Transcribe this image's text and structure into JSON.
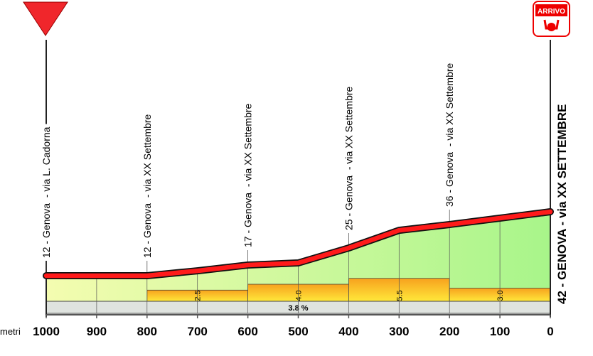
{
  "chart_data": {
    "type": "area",
    "title": "",
    "xlabel": "metri",
    "ylabel": "",
    "x_direction": "decreasing",
    "xlim": [
      1000,
      0
    ],
    "ylim": [
      0,
      42
    ],
    "x_ticks": [
      "1000",
      "900",
      "800",
      "700",
      "600",
      "500",
      "400",
      "300",
      "200",
      "100",
      "0"
    ],
    "profile": {
      "x": [
        1000,
        800,
        700,
        600,
        500,
        400,
        300,
        200,
        100,
        0
      ],
      "elevation": [
        12,
        12,
        14.3,
        17,
        18,
        25,
        33.3,
        36,
        39,
        42
      ]
    },
    "waypoints": [
      {
        "x": 1000,
        "label": "12 - Genova  - via L. Cadorna"
      },
      {
        "x": 800,
        "label": "12 - Genova  - via XX Settembre"
      },
      {
        "x": 600,
        "label": "17 - Genova  - via XX Settembre"
      },
      {
        "x": 400,
        "label": "25 - Genova  - via XX Settembre"
      },
      {
        "x": 200,
        "label": "36 - Genova  - via XX Settembre"
      },
      {
        "x": 0,
        "label": "42 - GENOVA - via XX SETTEMBRE",
        "finish": true
      }
    ],
    "gradients": [
      {
        "from": 800,
        "to": 600,
        "value": "2.5"
      },
      {
        "from": 600,
        "to": 400,
        "value": "4.0"
      },
      {
        "from": 400,
        "to": 200,
        "value": "5.5"
      },
      {
        "from": 200,
        "to": 0,
        "value": "3.0"
      }
    ],
    "average_gradient": "3.8 %",
    "finish_sign": "ARRIVO",
    "colors": {
      "route": "#ff1a1a",
      "area_top": "#a8f58a",
      "area_bottom": "#f4fcb0",
      "grad_top": "#f7a21e",
      "grad_bottom": "#ffe83a",
      "band": "#dfe3df",
      "start": "#f0262b"
    }
  }
}
